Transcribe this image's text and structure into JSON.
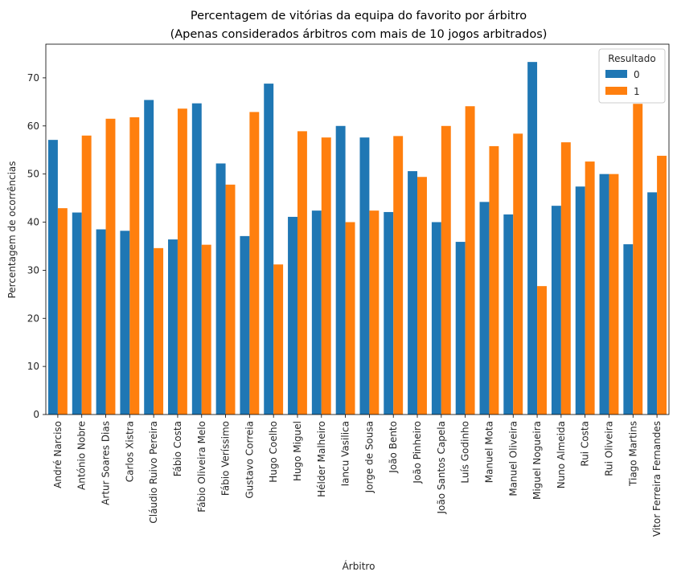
{
  "chart_data": {
    "type": "bar",
    "title": "Percentagem de vitórias da equipa do favorito por árbitro",
    "subtitle": "(Apenas considerados árbitros com mais de 10 jogos arbitrados)",
    "xlabel": "Árbitro",
    "ylabel": "Percentagem de ocorrências",
    "ylim": [
      0,
      77
    ],
    "yticks": [
      0,
      10,
      20,
      30,
      40,
      50,
      60,
      70
    ],
    "grid": false,
    "legend": {
      "title": "Resultado",
      "placement": "top-right"
    },
    "categories": [
      "André Narciso",
      "António Nobre",
      "Artur Soares Dias",
      "Carlos Xistra",
      "Cláudio Ruivo Pereira",
      "Fábio Costa",
      "Fábio Oliveira Melo",
      "Fábio Veríssimo",
      "Gustavo Correia",
      "Hugo Coelho",
      "Hugo Miguel",
      "Hélder Malheiro",
      "Iancu Vasilica",
      "Jorge de Sousa",
      "João Bento",
      "João Pinheiro",
      "João Santos Capela",
      "Luís Godinho",
      "Manuel Mota",
      "Manuel Oliveira",
      "Miguel Nogueira",
      "Nuno Almeida",
      "Rui Costa",
      "Rui Oliveira",
      "Tiago Martins",
      "Vitor Ferreira Fernandes"
    ],
    "series": [
      {
        "name": "0",
        "color": "#1f77b4",
        "values": [
          57.1,
          42.0,
          38.5,
          38.2,
          65.4,
          36.4,
          64.7,
          52.2,
          37.1,
          68.8,
          41.1,
          42.4,
          60.0,
          57.6,
          42.1,
          50.6,
          40.0,
          35.9,
          44.2,
          41.6,
          73.3,
          43.4,
          47.4,
          50.0,
          35.4,
          46.2
        ]
      },
      {
        "name": "1",
        "color": "#ff7f0e",
        "values": [
          42.9,
          58.0,
          61.5,
          61.8,
          34.6,
          63.6,
          35.3,
          47.8,
          62.9,
          31.2,
          58.9,
          57.6,
          40.0,
          42.4,
          57.9,
          49.4,
          60.0,
          64.1,
          55.8,
          58.4,
          26.7,
          56.6,
          52.6,
          50.0,
          64.6,
          53.8
        ]
      }
    ]
  }
}
